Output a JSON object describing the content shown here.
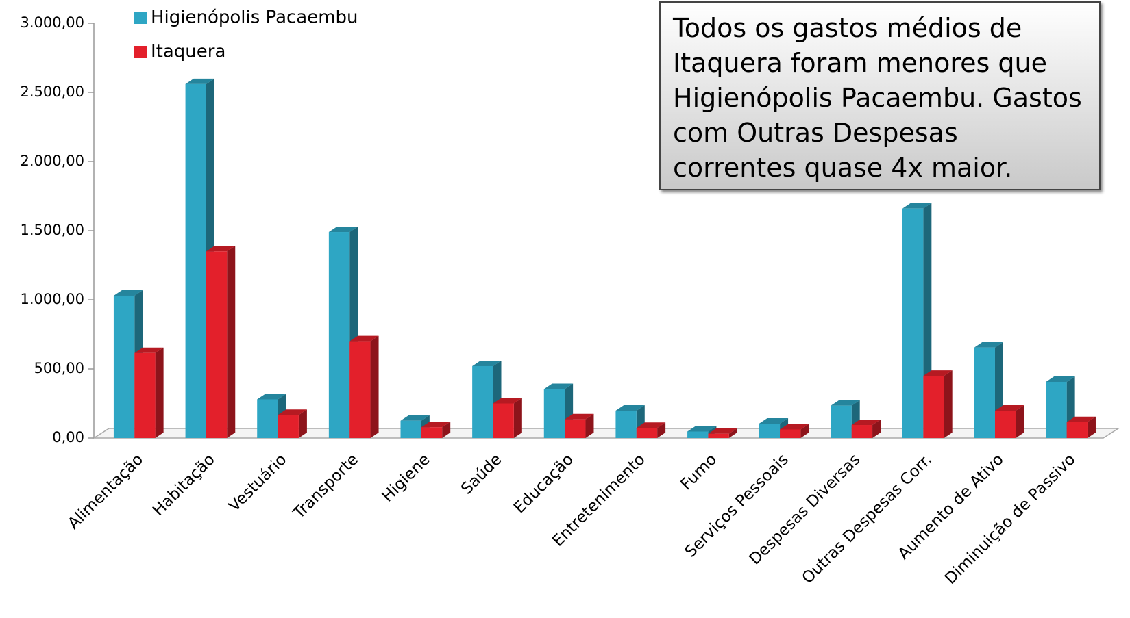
{
  "chart_data": {
    "type": "bar3d",
    "categories": [
      "Alimentação",
      "Habitação",
      "Vestuário",
      "Transporte",
      "Higiene",
      "Saúde",
      "Educação",
      "Entretenimento",
      "Fumo",
      "Serviços Pessoais",
      "Despesas Diversas",
      "Outras Despesas Corr.",
      "Aumento de Ativo",
      "Diminuição de Passivo"
    ],
    "series": [
      {
        "name": "Higienópolis Pacaembu",
        "color": "#2ea6c4",
        "values": [
          1030,
          2560,
          280,
          1490,
          125,
          520,
          354,
          198,
          47,
          104,
          234,
          1660,
          655,
          406
        ]
      },
      {
        "name": "Itaquera",
        "color": "#e3202b",
        "values": [
          615,
          1350,
          167,
          700,
          78,
          250,
          135,
          73,
          31,
          62,
          94,
          450,
          198,
          115
        ]
      }
    ],
    "ylim": [
      0,
      3000
    ],
    "yticks": [
      {
        "value": 0,
        "label": "0,00"
      },
      {
        "value": 500,
        "label": "500,00"
      },
      {
        "value": 1000,
        "label": "1.000,00"
      },
      {
        "value": 1500,
        "label": "1.500,00"
      },
      {
        "value": 2000,
        "label": "2.000,00"
      },
      {
        "value": 2500,
        "label": "2.500,00"
      },
      {
        "value": 3000,
        "label": "3.000,00"
      }
    ],
    "annotation": "Todos os gastos médios de Itaquera foram menores que Higienópolis Pacaembu. Gastos com Outras Despesas correntes quase 4x maior."
  }
}
